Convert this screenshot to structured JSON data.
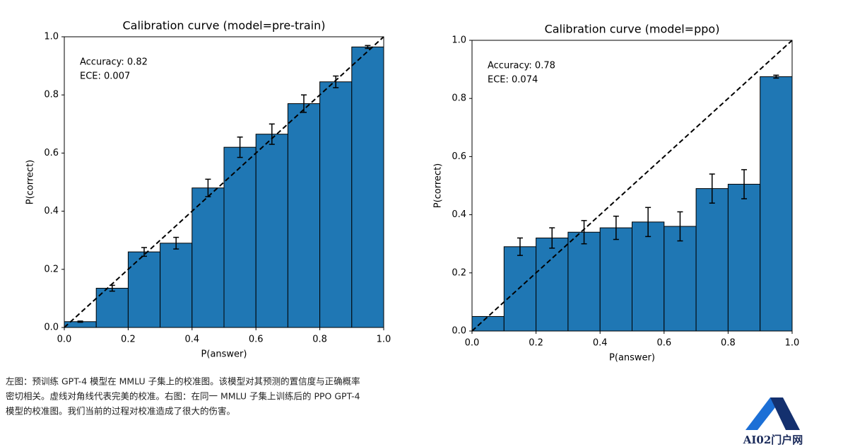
{
  "chart_data": [
    {
      "type": "histogram",
      "title": "Calibration curve (model=pre-train)",
      "x_label": "P(answer)",
      "y_label": "P(correct)",
      "annotations": [
        "Accuracy: 0.82",
        "ECE: 0.007"
      ],
      "bins": [
        0,
        0.1,
        0.2,
        0.3,
        0.4,
        0.5,
        0.6,
        0.7,
        0.8,
        0.9,
        1
      ],
      "values": [
        0.02,
        0.135,
        0.26,
        0.29,
        0.48,
        0.62,
        0.665,
        0.77,
        0.845,
        0.965
      ],
      "errors": [
        0.002,
        0.01,
        0.015,
        0.02,
        0.03,
        0.035,
        0.035,
        0.03,
        0.02,
        0.005
      ],
      "color": "#1f77b4",
      "diagonal": true,
      "xlim": [
        0,
        1
      ],
      "ylim": [
        0,
        1
      ],
      "xticks": [
        {
          "value": 0,
          "label": "0.0"
        },
        0.2,
        0.4,
        0.6,
        0.8,
        {
          "value": 1,
          "label": "1.0"
        }
      ],
      "yticks": [
        {
          "value": 0,
          "label": "0.0"
        },
        0.2,
        0.4,
        0.6,
        0.8,
        {
          "value": 1,
          "label": "1.0"
        }
      ]
    },
    {
      "type": "histogram",
      "title": "Calibration curve (model=ppo)",
      "x_label": "P(answer)",
      "y_label": "P(correct)",
      "annotations": [
        "Accuracy: 0.78",
        "ECE: 0.074"
      ],
      "bins": [
        0,
        0.1,
        0.2,
        0.3,
        0.4,
        0.5,
        0.6,
        0.7,
        0.8,
        0.9,
        1
      ],
      "values": [
        0.05,
        0.29,
        0.32,
        0.34,
        0.355,
        0.375,
        0.36,
        0.49,
        0.505,
        0.875
      ],
      "errors": [
        null,
        0.03,
        0.035,
        0.04,
        0.04,
        0.05,
        0.05,
        0.05,
        0.05,
        0.005
      ],
      "color": "#1f77b4",
      "diagonal": true,
      "xlim": [
        0,
        1
      ],
      "ylim": [
        0,
        1
      ],
      "xticks": [
        {
          "value": 0,
          "label": "0.0"
        },
        0.2,
        0.4,
        0.6,
        0.8,
        {
          "value": 1,
          "label": "1.0"
        }
      ],
      "yticks": [
        {
          "value": 0,
          "label": "0.0"
        },
        0.2,
        0.4,
        0.6,
        0.8,
        {
          "value": 1,
          "label": "1.0"
        }
      ]
    }
  ],
  "caption": [
    "左图：预训练 GPT-4 模型在 MMLU 子集上的校准图。该模型对其预测的置信度与正确概率",
    "密切相关。虚线对角线代表完美的校准。右图：在同一 MMLU 子集上训练后的 PPO GPT-4",
    "模型的校准图。我们当前的过程对校准造成了很大的伤害。"
  ],
  "logo_text": "AI02门户网"
}
